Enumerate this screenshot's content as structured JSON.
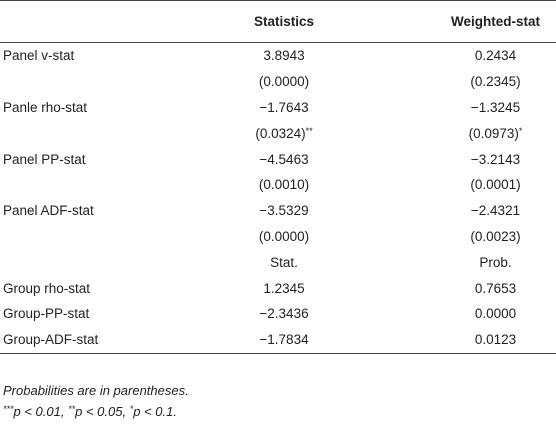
{
  "table": {
    "header": [
      "Statistics",
      "Weighted-stat"
    ],
    "rows": [
      {
        "label": "Panel v-stat",
        "cells": [
          "3.8943",
          "0.2434"
        ]
      },
      {
        "cells": [
          "(0.0000)",
          "(0.2345)"
        ]
      },
      {
        "label": "Panle rho-stat",
        "cells": [
          "−1.7643",
          "−1.3245"
        ]
      },
      {
        "cells": [
          {
            "text": "(0.0324)",
            "sup": "**"
          },
          {
            "text": "(0.0973)",
            "sup": "*"
          }
        ]
      },
      {
        "label": "Panel PP-stat",
        "cells": [
          "−4.5463",
          "−3.2143"
        ]
      },
      {
        "cells": [
          "(0.0010)",
          "(0.0001)"
        ]
      },
      {
        "label": "Panel ADF-stat",
        "cells": [
          "−3.5329",
          "−2.4321"
        ]
      },
      {
        "cells": [
          "(0.0000)",
          "(0.0023)"
        ]
      },
      {
        "cells": [
          "Stat.",
          "Prob."
        ]
      },
      {
        "label": "Group rho-stat",
        "cells": [
          "1.2345",
          "0.7653"
        ]
      },
      {
        "label": "Group-PP-stat",
        "cells": [
          "−2.3436",
          "0.0000"
        ]
      },
      {
        "label": "Group-ADF-stat",
        "cells": [
          "−1.7834",
          "0.0123"
        ]
      }
    ]
  },
  "footnote": {
    "note": "Probabilities are in parentheses.",
    "significance": [
      {
        "sup": "***",
        "text": "p < 0.01, "
      },
      {
        "sup": "**",
        "text": "p < 0.05, "
      },
      {
        "sup": "*",
        "text": "p < 0.1."
      }
    ]
  }
}
